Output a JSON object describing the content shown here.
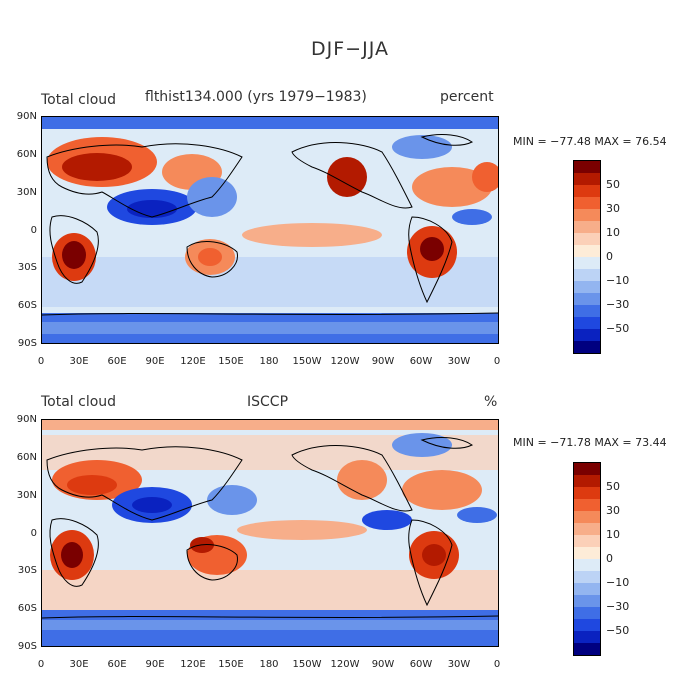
{
  "title": "DJF−JJA",
  "panels": [
    {
      "left_label": "Total cloud",
      "center_label": "flthist134.000 (yrs 1979−1983)",
      "right_label": "percent",
      "min_max": "MIN = −77.48 MAX =  76.54"
    },
    {
      "left_label": "Total cloud",
      "center_label": "ISCCP",
      "right_label": "%",
      "min_max": "MIN = −71.78 MAX =  73.44"
    }
  ],
  "lat_labels": [
    "90N",
    "60N",
    "30N",
    "0",
    "30S",
    "60S",
    "90S"
  ],
  "lon_labels": [
    "0",
    "30E",
    "60E",
    "90E",
    "120E",
    "150E",
    "180",
    "150W",
    "120W",
    "90W",
    "60W",
    "30W",
    "0"
  ],
  "colorbar": {
    "labels": [
      "50",
      "30",
      "10",
      "0",
      "−10",
      "−30",
      "−50"
    ],
    "colors": [
      "#7a0000",
      "#b31a00",
      "#dd3a10",
      "#f06030",
      "#f58a5a",
      "#f7ae8a",
      "#fbd0b8",
      "#fdecd8",
      "#ddebf7",
      "#bcd3f5",
      "#93b5f0",
      "#6a94ea",
      "#3f6ee6",
      "#1f48e0",
      "#0a22c0",
      "#000080"
    ]
  }
}
